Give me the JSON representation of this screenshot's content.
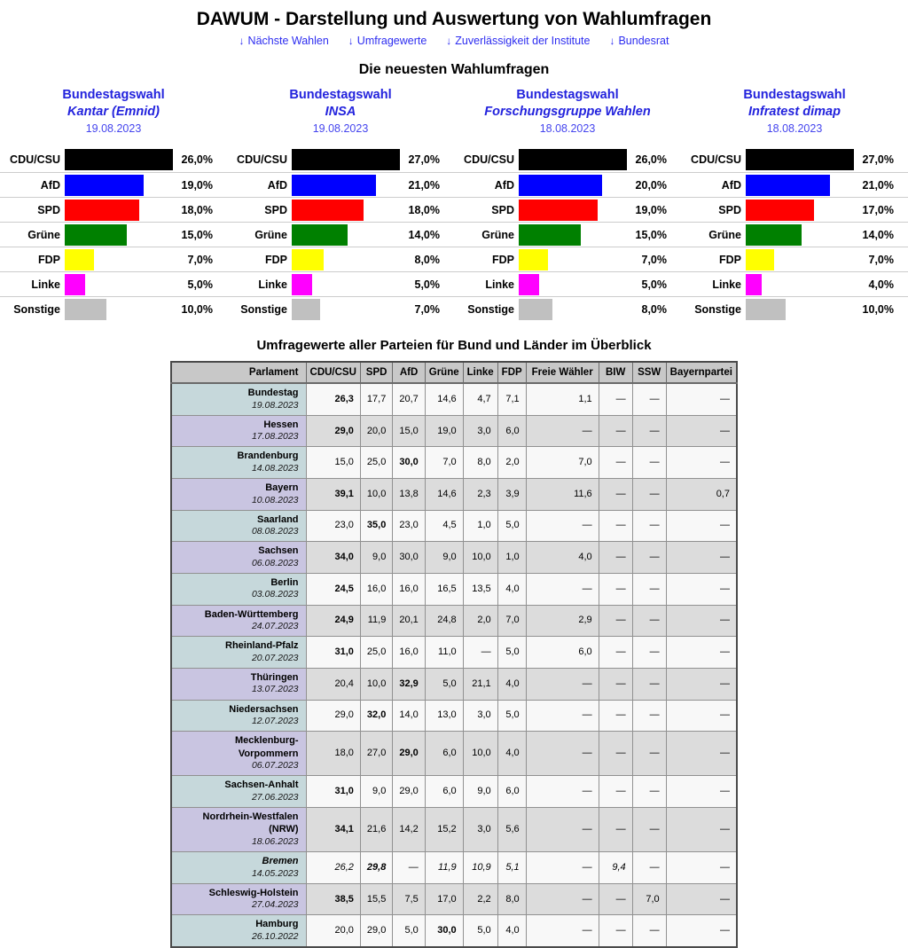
{
  "header": {
    "title": "DAWUM - Darstellung und Auswertung von Wahlumfragen",
    "nav": [
      {
        "id": "naechste-wahlen",
        "label": "Nächste Wahlen"
      },
      {
        "id": "umfragewerte",
        "label": "Umfragewerte"
      },
      {
        "id": "zuverlaessigkeit-der-institute",
        "label": "Zuverlässigkeit der Institute"
      },
      {
        "id": "bundesrat",
        "label": "Bundesrat"
      }
    ]
  },
  "icons": {
    "down_arrow": "↓"
  },
  "party_colors": {
    "CDU/CSU": "#000000",
    "AfD": "#0000ff",
    "SPD": "#ff0000",
    "Grüne": "#008000",
    "FDP": "#ffff00",
    "Linke": "#ff00ff",
    "Sonstige": "#c0c0c0"
  },
  "polls": {
    "heading": "Die neuesten Wahlumfragen",
    "charts": [
      {
        "election": "Bundestagswahl",
        "institute": "Kantar (Emnid)",
        "date": "19.08.2023",
        "results": [
          {
            "party": "CDU/CSU",
            "value": 26,
            "display": "26,0%"
          },
          {
            "party": "AfD",
            "value": 19,
            "display": "19,0%"
          },
          {
            "party": "SPD",
            "value": 18,
            "display": "18,0%"
          },
          {
            "party": "Grüne",
            "value": 15,
            "display": "15,0%"
          },
          {
            "party": "FDP",
            "value": 7,
            "display": "7,0%"
          },
          {
            "party": "Linke",
            "value": 5,
            "display": "5,0%"
          },
          {
            "party": "Sonstige",
            "value": 10,
            "display": "10,0%"
          }
        ]
      },
      {
        "election": "Bundestagswahl",
        "institute": "INSA",
        "date": "19.08.2023",
        "results": [
          {
            "party": "CDU/CSU",
            "value": 27,
            "display": "27,0%"
          },
          {
            "party": "AfD",
            "value": 21,
            "display": "21,0%"
          },
          {
            "party": "SPD",
            "value": 18,
            "display": "18,0%"
          },
          {
            "party": "Grüne",
            "value": 14,
            "display": "14,0%"
          },
          {
            "party": "FDP",
            "value": 8,
            "display": "8,0%"
          },
          {
            "party": "Linke",
            "value": 5,
            "display": "5,0%"
          },
          {
            "party": "Sonstige",
            "value": 7,
            "display": "7,0%"
          }
        ]
      },
      {
        "election": "Bundestagswahl",
        "institute": "Forschungsgruppe Wahlen",
        "date": "18.08.2023",
        "results": [
          {
            "party": "CDU/CSU",
            "value": 26,
            "display": "26,0%"
          },
          {
            "party": "AfD",
            "value": 20,
            "display": "20,0%"
          },
          {
            "party": "SPD",
            "value": 19,
            "display": "19,0%"
          },
          {
            "party": "Grüne",
            "value": 15,
            "display": "15,0%"
          },
          {
            "party": "FDP",
            "value": 7,
            "display": "7,0%"
          },
          {
            "party": "Linke",
            "value": 5,
            "display": "5,0%"
          },
          {
            "party": "Sonstige",
            "value": 8,
            "display": "8,0%"
          }
        ]
      },
      {
        "election": "Bundestagswahl",
        "institute": "Infratest dimap",
        "date": "18.08.2023",
        "results": [
          {
            "party": "CDU/CSU",
            "value": 27,
            "display": "27,0%"
          },
          {
            "party": "AfD",
            "value": 21,
            "display": "21,0%"
          },
          {
            "party": "SPD",
            "value": 17,
            "display": "17,0%"
          },
          {
            "party": "Grüne",
            "value": 14,
            "display": "14,0%"
          },
          {
            "party": "FDP",
            "value": 7,
            "display": "7,0%"
          },
          {
            "party": "Linke",
            "value": 4,
            "display": "4,0%"
          },
          {
            "party": "Sonstige",
            "value": 10,
            "display": "10,0%"
          }
        ]
      }
    ]
  },
  "table": {
    "heading": "Umfragewerte aller Parteien für Bund und Länder im Überblick",
    "columns": [
      "Parlament",
      "CDU/CSU",
      "SPD",
      "AfD",
      "Grüne",
      "Linke",
      "FDP",
      "Freie Wähler",
      "BIW",
      "SSW",
      "Bayernpartei"
    ],
    "rows": [
      {
        "name": "Bundestag",
        "date": "19.08.2023",
        "bold": 0,
        "values": [
          "26,3",
          "17,7",
          "20,7",
          "14,6",
          "4,7",
          "7,1",
          "1,1",
          "—",
          "—",
          "—"
        ]
      },
      {
        "name": "Hessen",
        "date": "17.08.2023",
        "bold": 0,
        "values": [
          "29,0",
          "20,0",
          "15,0",
          "19,0",
          "3,0",
          "6,0",
          "—",
          "—",
          "—",
          "—"
        ]
      },
      {
        "name": "Brandenburg",
        "date": "14.08.2023",
        "bold": 2,
        "values": [
          "15,0",
          "25,0",
          "30,0",
          "7,0",
          "8,0",
          "2,0",
          "7,0",
          "—",
          "—",
          "—"
        ]
      },
      {
        "name": "Bayern",
        "date": "10.08.2023",
        "bold": 0,
        "values": [
          "39,1",
          "10,0",
          "13,8",
          "14,6",
          "2,3",
          "3,9",
          "11,6",
          "—",
          "—",
          "0,7"
        ]
      },
      {
        "name": "Saarland",
        "date": "08.08.2023",
        "bold": 1,
        "values": [
          "23,0",
          "35,0",
          "23,0",
          "4,5",
          "1,0",
          "5,0",
          "—",
          "—",
          "—",
          "—"
        ]
      },
      {
        "name": "Sachsen",
        "date": "06.08.2023",
        "bold": 0,
        "values": [
          "34,0",
          "9,0",
          "30,0",
          "9,0",
          "10,0",
          "1,0",
          "4,0",
          "—",
          "—",
          "—"
        ]
      },
      {
        "name": "Berlin",
        "date": "03.08.2023",
        "bold": 0,
        "values": [
          "24,5",
          "16,0",
          "16,0",
          "16,5",
          "13,5",
          "4,0",
          "—",
          "—",
          "—",
          "—"
        ]
      },
      {
        "name": "Baden-Württemberg",
        "date": "24.07.2023",
        "bold": 0,
        "values": [
          "24,9",
          "11,9",
          "20,1",
          "24,8",
          "2,0",
          "7,0",
          "2,9",
          "—",
          "—",
          "—"
        ]
      },
      {
        "name": "Rheinland-Pfalz",
        "date": "20.07.2023",
        "bold": 0,
        "values": [
          "31,0",
          "25,0",
          "16,0",
          "11,0",
          "—",
          "5,0",
          "6,0",
          "—",
          "—",
          "—"
        ]
      },
      {
        "name": "Thüringen",
        "date": "13.07.2023",
        "bold": 2,
        "values": [
          "20,4",
          "10,0",
          "32,9",
          "5,0",
          "21,1",
          "4,0",
          "—",
          "—",
          "—",
          "—"
        ]
      },
      {
        "name": "Niedersachsen",
        "date": "12.07.2023",
        "bold": 1,
        "values": [
          "29,0",
          "32,0",
          "14,0",
          "13,0",
          "3,0",
          "5,0",
          "—",
          "—",
          "—",
          "—"
        ]
      },
      {
        "name": "Mecklenburg-Vorpommern",
        "date": "06.07.2023",
        "bold": 2,
        "values": [
          "18,0",
          "27,0",
          "29,0",
          "6,0",
          "10,0",
          "4,0",
          "—",
          "—",
          "—",
          "—"
        ]
      },
      {
        "name": "Sachsen-Anhalt",
        "date": "27.06.2023",
        "bold": 0,
        "values": [
          "31,0",
          "9,0",
          "29,0",
          "6,0",
          "9,0",
          "6,0",
          "—",
          "—",
          "—",
          "—"
        ]
      },
      {
        "name": "Nordrhein-Westfalen (NRW)",
        "date": "18.06.2023",
        "bold": 0,
        "values": [
          "34,1",
          "21,6",
          "14,2",
          "15,2",
          "3,0",
          "5,6",
          "—",
          "—",
          "—",
          "—"
        ]
      },
      {
        "name": "Bremen",
        "date": "14.05.2023",
        "italic": true,
        "bold": 1,
        "values": [
          "26,2",
          "29,8",
          "—",
          "11,9",
          "10,9",
          "5,1",
          "—",
          "9,4",
          "—",
          "—"
        ]
      },
      {
        "name": "Schleswig-Holstein",
        "date": "27.04.2023",
        "bold": 0,
        "values": [
          "38,5",
          "15,5",
          "7,5",
          "17,0",
          "2,2",
          "8,0",
          "—",
          "—",
          "7,0",
          "—"
        ]
      },
      {
        "name": "Hamburg",
        "date": "26.10.2022",
        "bold": 3,
        "values": [
          "20,0",
          "29,0",
          "5,0",
          "30,0",
          "5,0",
          "4,0",
          "—",
          "—",
          "—",
          "—"
        ]
      }
    ]
  },
  "chart_data": [
    {
      "type": "bar",
      "orientation": "horizontal",
      "title": "Bundestagswahl - Kantar (Emnid), 19.08.2023",
      "unit": "%",
      "categories": [
        "CDU/CSU",
        "AfD",
        "SPD",
        "Grüne",
        "FDP",
        "Linke",
        "Sonstige"
      ],
      "values": [
        26.0,
        19.0,
        18.0,
        15.0,
        7.0,
        5.0,
        10.0
      ]
    },
    {
      "type": "bar",
      "orientation": "horizontal",
      "title": "Bundestagswahl - INSA, 19.08.2023",
      "unit": "%",
      "categories": [
        "CDU/CSU",
        "AfD",
        "SPD",
        "Grüne",
        "FDP",
        "Linke",
        "Sonstige"
      ],
      "values": [
        27.0,
        21.0,
        18.0,
        14.0,
        8.0,
        5.0,
        7.0
      ]
    },
    {
      "type": "bar",
      "orientation": "horizontal",
      "title": "Bundestagswahl - Forschungsgruppe Wahlen, 18.08.2023",
      "unit": "%",
      "categories": [
        "CDU/CSU",
        "AfD",
        "SPD",
        "Grüne",
        "FDP",
        "Linke",
        "Sonstige"
      ],
      "values": [
        26.0,
        20.0,
        19.0,
        15.0,
        7.0,
        5.0,
        8.0
      ]
    },
    {
      "type": "bar",
      "orientation": "horizontal",
      "title": "Bundestagswahl - Infratest dimap, 18.08.2023",
      "unit": "%",
      "categories": [
        "CDU/CSU",
        "AfD",
        "SPD",
        "Grüne",
        "FDP",
        "Linke",
        "Sonstige"
      ],
      "values": [
        27.0,
        21.0,
        17.0,
        14.0,
        7.0,
        4.0,
        10.0
      ]
    }
  ]
}
